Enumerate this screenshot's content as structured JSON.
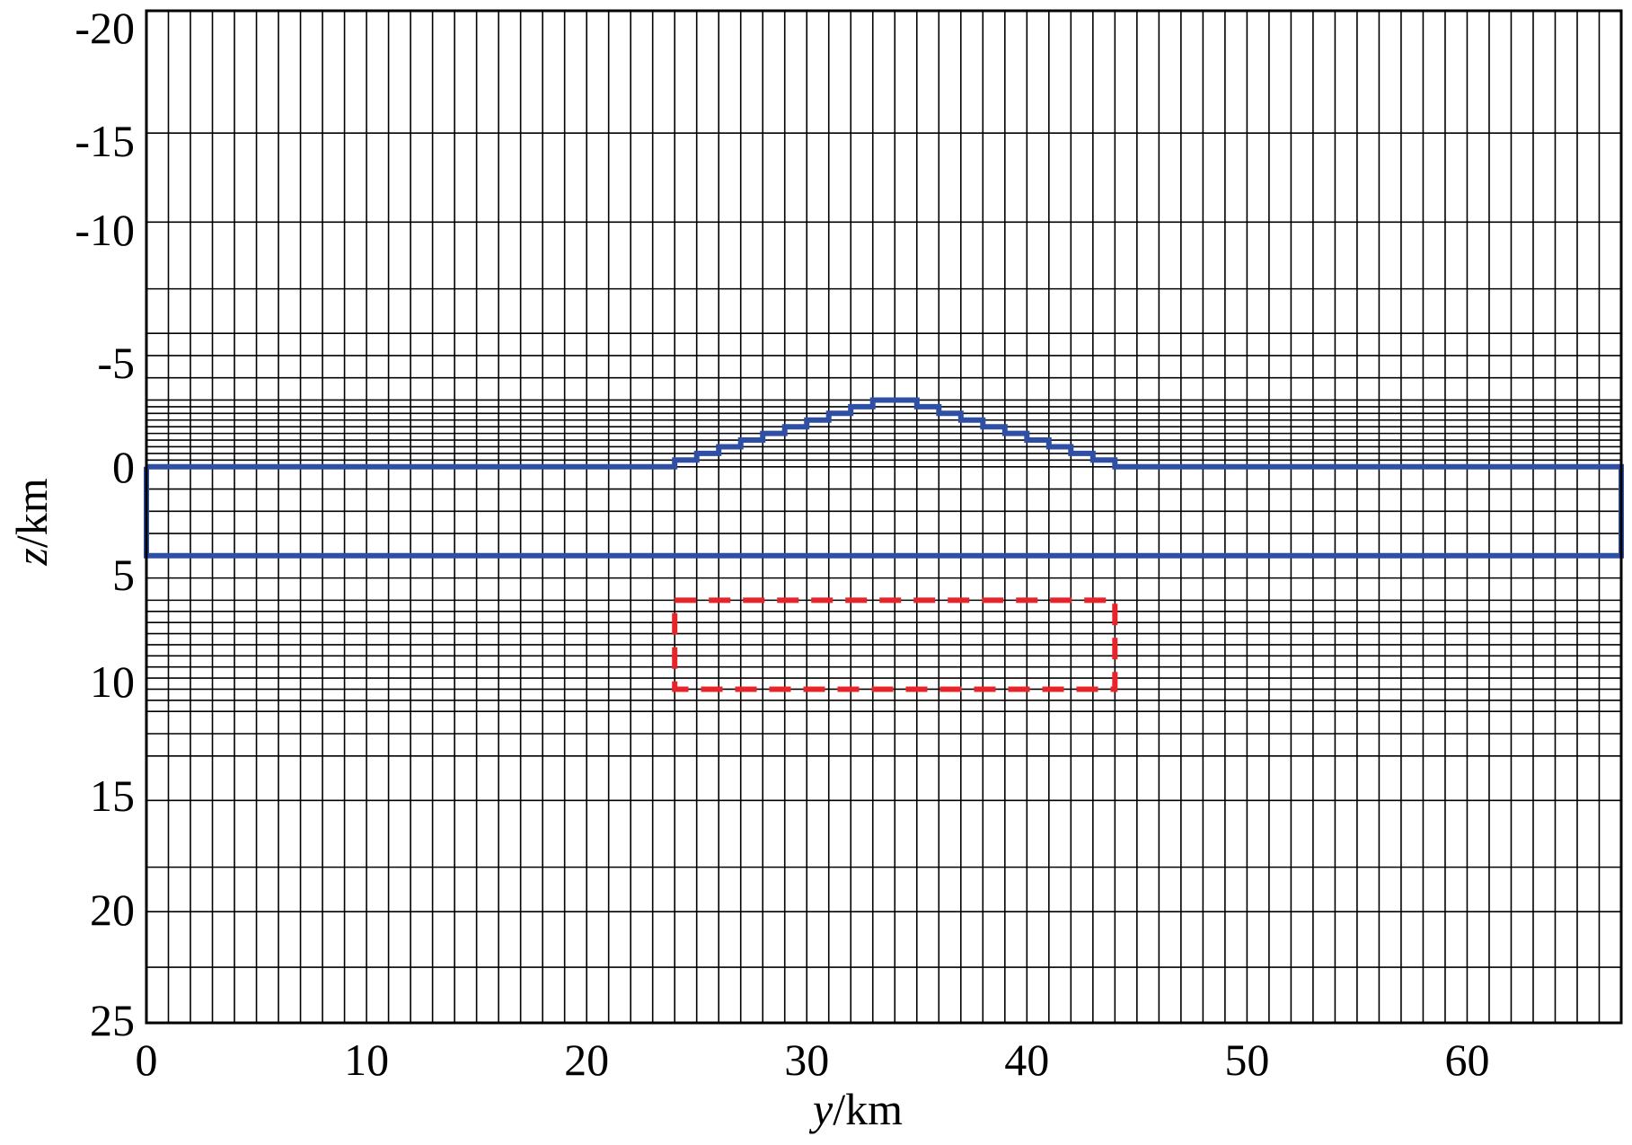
{
  "chart_data": {
    "type": "mesh_grid",
    "xlabel": {
      "var": "y",
      "unit": "/km"
    },
    "ylabel": {
      "var": "z",
      "unit": "/km"
    },
    "xlim": [
      0,
      67
    ],
    "ylim": [
      -20.5,
      25
    ],
    "y_inverted": true,
    "x_ticks": [
      "0",
      "10",
      "20",
      "30",
      "40",
      "50",
      "60"
    ],
    "y_ticks": [
      "-20",
      "-15",
      "-10",
      "-5",
      "0",
      "5",
      "10",
      "15",
      "20",
      "25"
    ],
    "grid": true,
    "mesh_y_lines": [
      0,
      1,
      2,
      3,
      4,
      5,
      6,
      7,
      8,
      9,
      10,
      11,
      12,
      13,
      14,
      15,
      16,
      17,
      18,
      19,
      20,
      21,
      22,
      23,
      24,
      25,
      26,
      27,
      28,
      29,
      30,
      31,
      32,
      33,
      34,
      35,
      36,
      37,
      38,
      39,
      40,
      41,
      42,
      43,
      44,
      45,
      46,
      47,
      48,
      49,
      50,
      51,
      52,
      53,
      54,
      55,
      56,
      57,
      58,
      59,
      60,
      61,
      62,
      63,
      64,
      65,
      66,
      67
    ],
    "mesh_z_lines": [
      -20.5,
      -15,
      -11,
      -8,
      -6,
      -5,
      -4,
      -3,
      -2.7,
      -2.4,
      -2.1,
      -1.8,
      -1.5,
      -1.2,
      -0.9,
      -0.6,
      -0.3,
      0,
      1,
      2,
      3,
      4,
      5,
      6,
      6.5,
      7,
      7.5,
      8,
      8.5,
      9,
      9.5,
      10,
      10.5,
      11,
      12,
      13,
      15,
      18,
      20,
      22.5,
      25
    ],
    "series": [
      {
        "style": "solid",
        "color": "#2e4fa3",
        "points": [
          [
            0,
            0
          ],
          [
            24,
            0
          ],
          [
            24,
            -0.3
          ],
          [
            25,
            -0.3
          ],
          [
            25,
            -0.6
          ],
          [
            26,
            -0.6
          ],
          [
            26,
            -0.9
          ],
          [
            27,
            -0.9
          ],
          [
            27,
            -1.2
          ],
          [
            28,
            -1.2
          ],
          [
            28,
            -1.5
          ],
          [
            29,
            -1.5
          ],
          [
            29,
            -1.8
          ],
          [
            30,
            -1.8
          ],
          [
            30,
            -2.1
          ],
          [
            31,
            -2.1
          ],
          [
            31,
            -2.4
          ],
          [
            32,
            -2.4
          ],
          [
            32,
            -2.7
          ],
          [
            33,
            -2.7
          ],
          [
            33,
            -3
          ],
          [
            35,
            -3
          ],
          [
            35,
            -2.7
          ],
          [
            36,
            -2.7
          ],
          [
            36,
            -2.4
          ],
          [
            37,
            -2.4
          ],
          [
            37,
            -2.1
          ],
          [
            38,
            -2.1
          ],
          [
            38,
            -1.8
          ],
          [
            39,
            -1.8
          ],
          [
            39,
            -1.5
          ],
          [
            40,
            -1.5
          ],
          [
            40,
            -1.2
          ],
          [
            41,
            -1.2
          ],
          [
            41,
            -0.9
          ],
          [
            42,
            -0.9
          ],
          [
            42,
            -0.6
          ],
          [
            43,
            -0.6
          ],
          [
            43,
            -0.3
          ],
          [
            44,
            -0.3
          ],
          [
            44,
            0
          ],
          [
            67,
            0
          ],
          [
            67,
            4
          ],
          [
            0,
            4
          ],
          [
            0,
            0
          ]
        ]
      },
      {
        "style": "dashed",
        "color": "#e8242b",
        "points": [
          [
            24,
            6
          ],
          [
            44,
            6
          ],
          [
            44,
            10
          ],
          [
            24,
            10
          ],
          [
            24,
            6
          ]
        ]
      }
    ]
  }
}
